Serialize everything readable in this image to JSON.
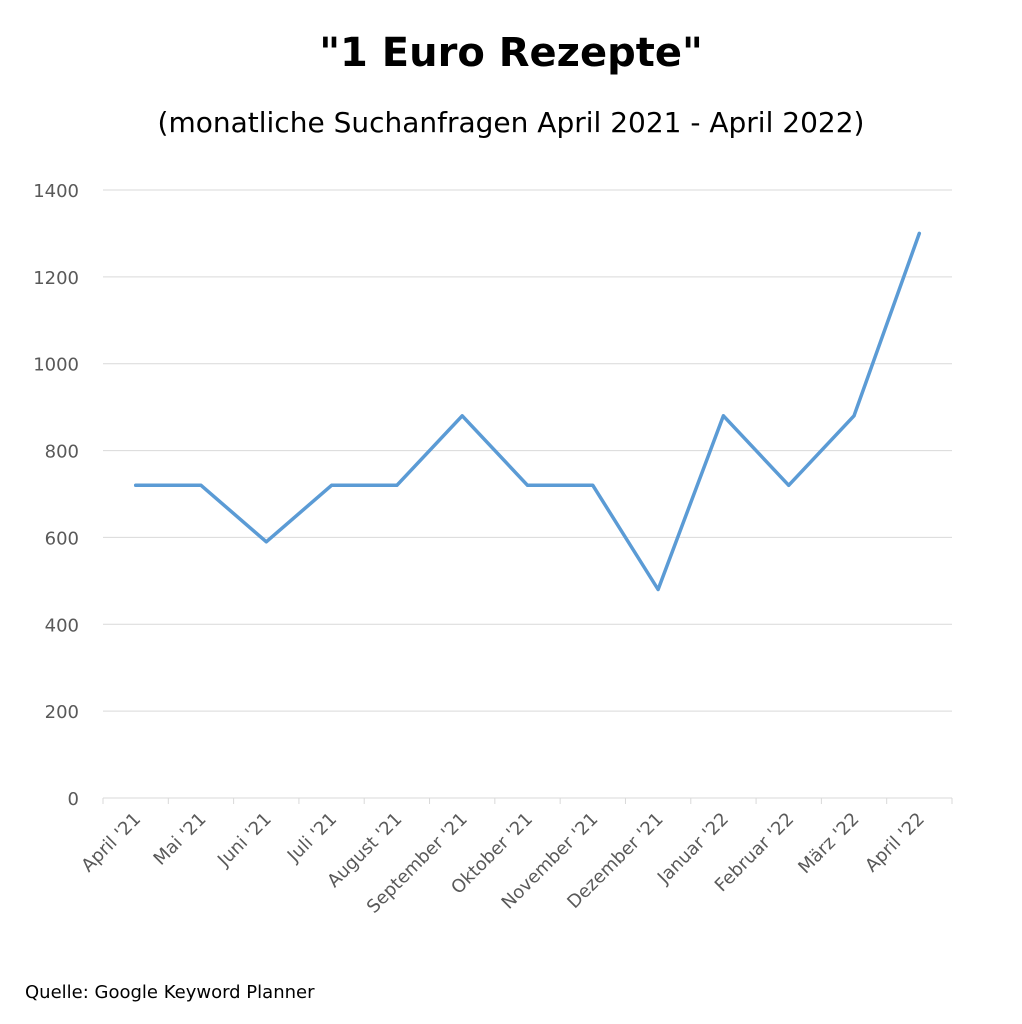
{
  "chart_data": {
    "type": "line",
    "title": "\"1 Euro Rezepte\"",
    "subtitle": "(monatliche Suchanfragen April 2021 - April 2022)",
    "source": "Quelle: Google Keyword Planner",
    "categories": [
      "April '21",
      "Mai '21",
      "Juni '21",
      "Juli '21",
      "August '21",
      "September '21",
      "Oktober '21",
      "November '21",
      "Dezember '21",
      "Januar '22",
      "Februar '22",
      "März '22",
      "April '22"
    ],
    "series": [
      {
        "values": [
          720,
          720,
          590,
          720,
          720,
          880,
          720,
          720,
          480,
          880,
          720,
          880,
          1300
        ],
        "color": "#5b9bd5"
      }
    ],
    "ylim": [
      0,
      1400
    ],
    "yticks": [
      0,
      200,
      400,
      600,
      800,
      1000,
      1200,
      1400
    ],
    "grid": true,
    "legend": "none",
    "xlabel": "",
    "ylabel": ""
  }
}
